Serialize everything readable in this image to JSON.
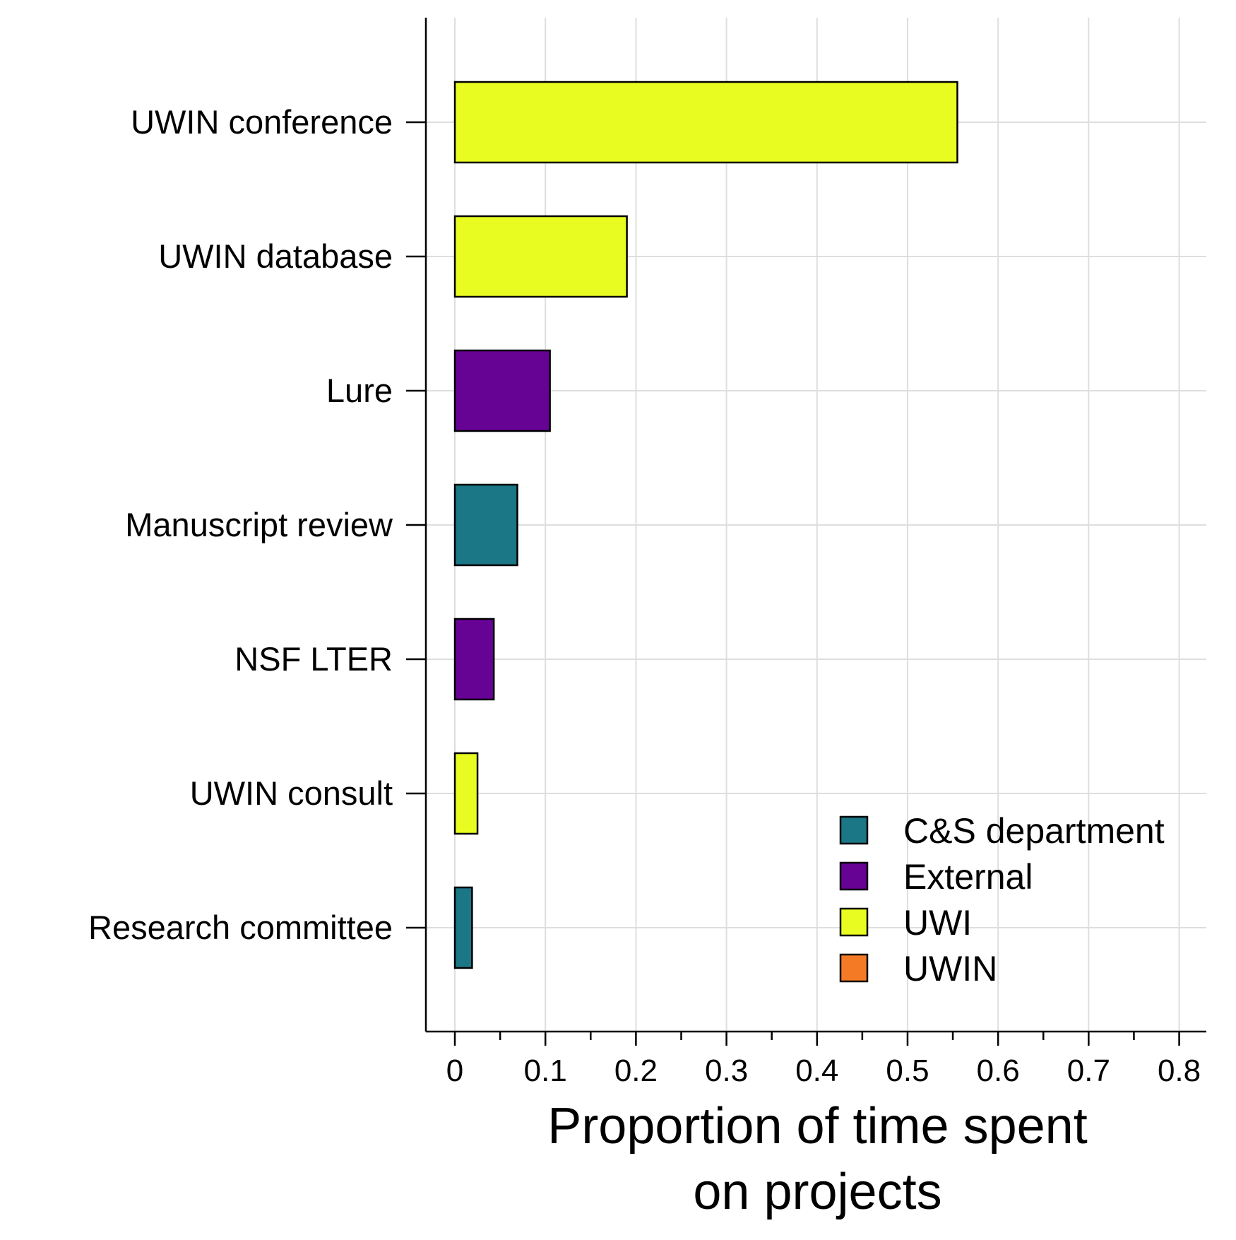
{
  "chart_data": {
    "type": "bar",
    "orientation": "horizontal",
    "title": "",
    "xlabel_lines": [
      "Proportion of time spent",
      "on projects"
    ],
    "ylabel": "",
    "xlim": [
      -0.032,
      0.83
    ],
    "x_ticks": [
      0,
      0.1,
      0.2,
      0.3,
      0.4,
      0.5,
      0.6,
      0.7,
      0.8
    ],
    "x_tick_labels": [
      "0",
      "0.1",
      "0.2",
      "0.3",
      "0.4",
      "0.5",
      "0.6",
      "0.7",
      "0.8"
    ],
    "x_minor_ticks": [
      0.05,
      0.15,
      0.25,
      0.35,
      0.45,
      0.55,
      0.65,
      0.75
    ],
    "grid": true,
    "legend_position": "bottom-right",
    "categories": [
      "UWIN conference",
      "UWIN database",
      "Lure",
      "Manuscript review",
      "NSF LTER",
      "UWIN consult",
      "Research committee"
    ],
    "values": [
      0.555,
      0.19,
      0.105,
      0.069,
      0.043,
      0.025,
      0.019
    ],
    "groups": [
      "UWI",
      "UWI",
      "External",
      "C&S department",
      "External",
      "UWI",
      "C&S department"
    ],
    "legend": [
      {
        "name": "C&S department",
        "color": "#1b7686"
      },
      {
        "name": "External",
        "color": "#660294"
      },
      {
        "name": "UWI",
        "color": "#e9fc21"
      },
      {
        "name": "UWIN",
        "color": "#f47a25"
      }
    ],
    "colors": {
      "grid": "#dedede",
      "axis": "#000000",
      "bar_stroke": "#000000"
    }
  }
}
